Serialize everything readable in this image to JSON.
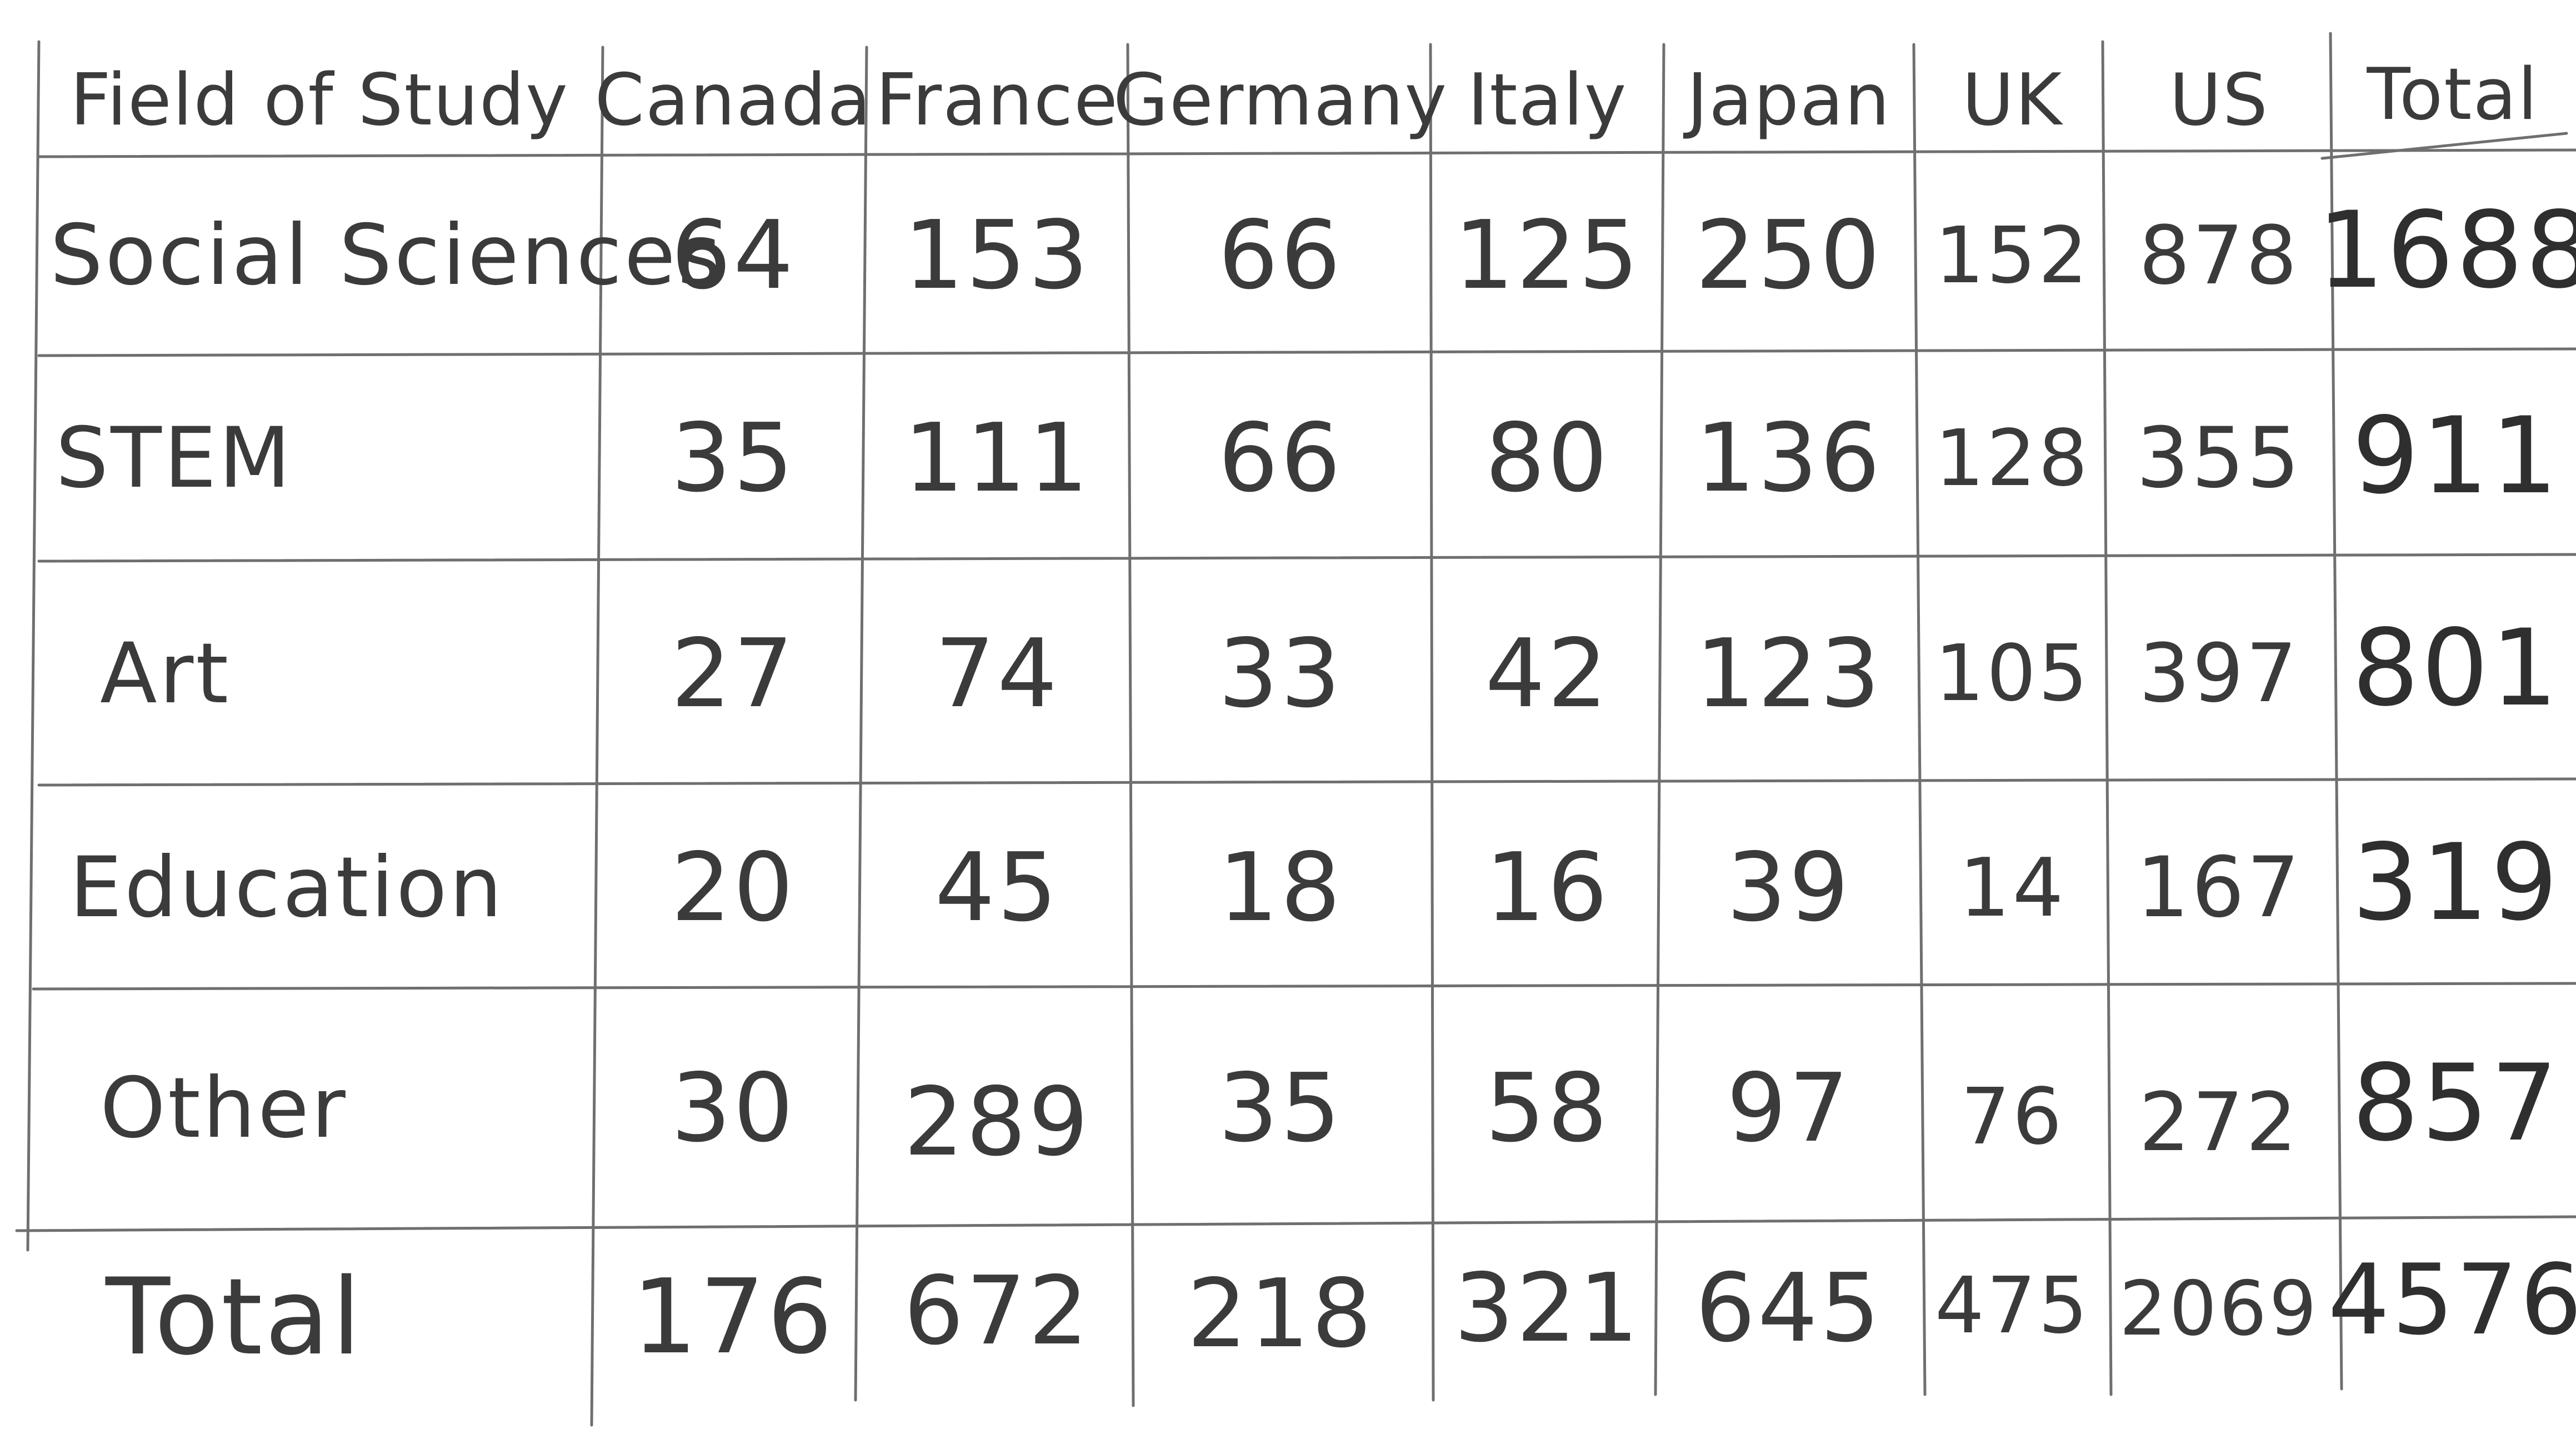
{
  "table": {
    "headers": [
      "Field of Study",
      "Canada",
      "France",
      "Germany",
      "Italy",
      "Japan",
      "UK",
      "US",
      "Total"
    ],
    "rows": [
      {
        "label": "Social Sciences",
        "values": [
          "64",
          "153",
          "66",
          "125",
          "250",
          "152",
          "878",
          "1688"
        ]
      },
      {
        "label": "STEM",
        "values": [
          "35",
          "111",
          "66",
          "80",
          "136",
          "128",
          "355",
          "911"
        ]
      },
      {
        "label": "Art",
        "values": [
          "27",
          "74",
          "33",
          "42",
          "123",
          "105",
          "397",
          "801"
        ]
      },
      {
        "label": "Education",
        "values": [
          "20",
          "45",
          "18",
          "16",
          "39",
          "14",
          "167",
          "319"
        ]
      },
      {
        "label": "Other",
        "values": [
          "30",
          "289",
          "35",
          "58",
          "97",
          "76",
          "272",
          "857"
        ]
      },
      {
        "label": "Total",
        "values": [
          "176",
          "672",
          "218",
          "321",
          "645",
          "475",
          "2069",
          "4576"
        ]
      }
    ]
  }
}
